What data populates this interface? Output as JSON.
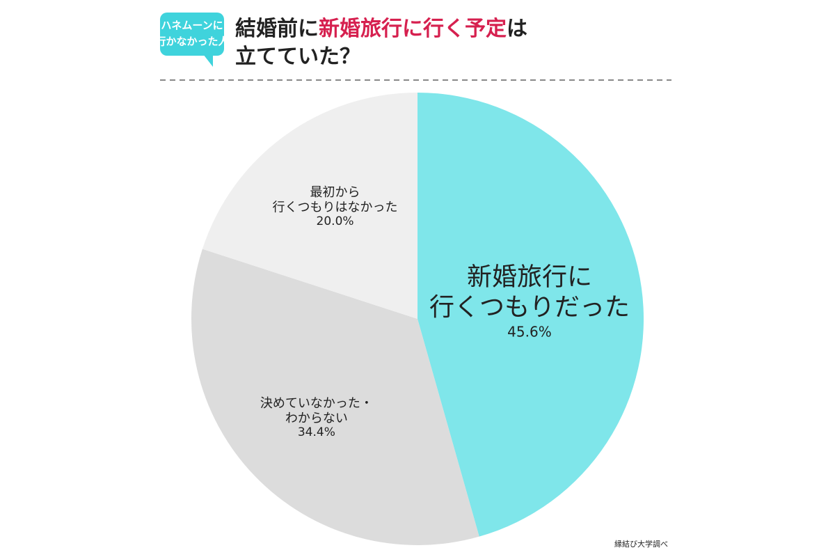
{
  "badge": [
    "ハネムーンに",
    "行かなかった人"
  ],
  "chart_data": {
    "type": "pie",
    "title": [
      [
        "結婚前に",
        "新婚旅行に行く予定",
        "は"
      ],
      [
        "立てていた？"
      ]
    ],
    "categories": [
      [
        "新婚旅行に",
        "行くつもりだった"
      ],
      [
        "決めていなかった・",
        "わからない"
      ],
      [
        "最初から",
        "行くつもりはなかった"
      ]
    ],
    "values": [
      45.6,
      34.4,
      20.0
    ],
    "value_labels": [
      "45.6%",
      "34.4%",
      "20.0%"
    ],
    "colors": [
      "#7fe6ea",
      "#dcdcdc",
      "#efefef"
    ],
    "source": "縁結び大学調べ"
  }
}
